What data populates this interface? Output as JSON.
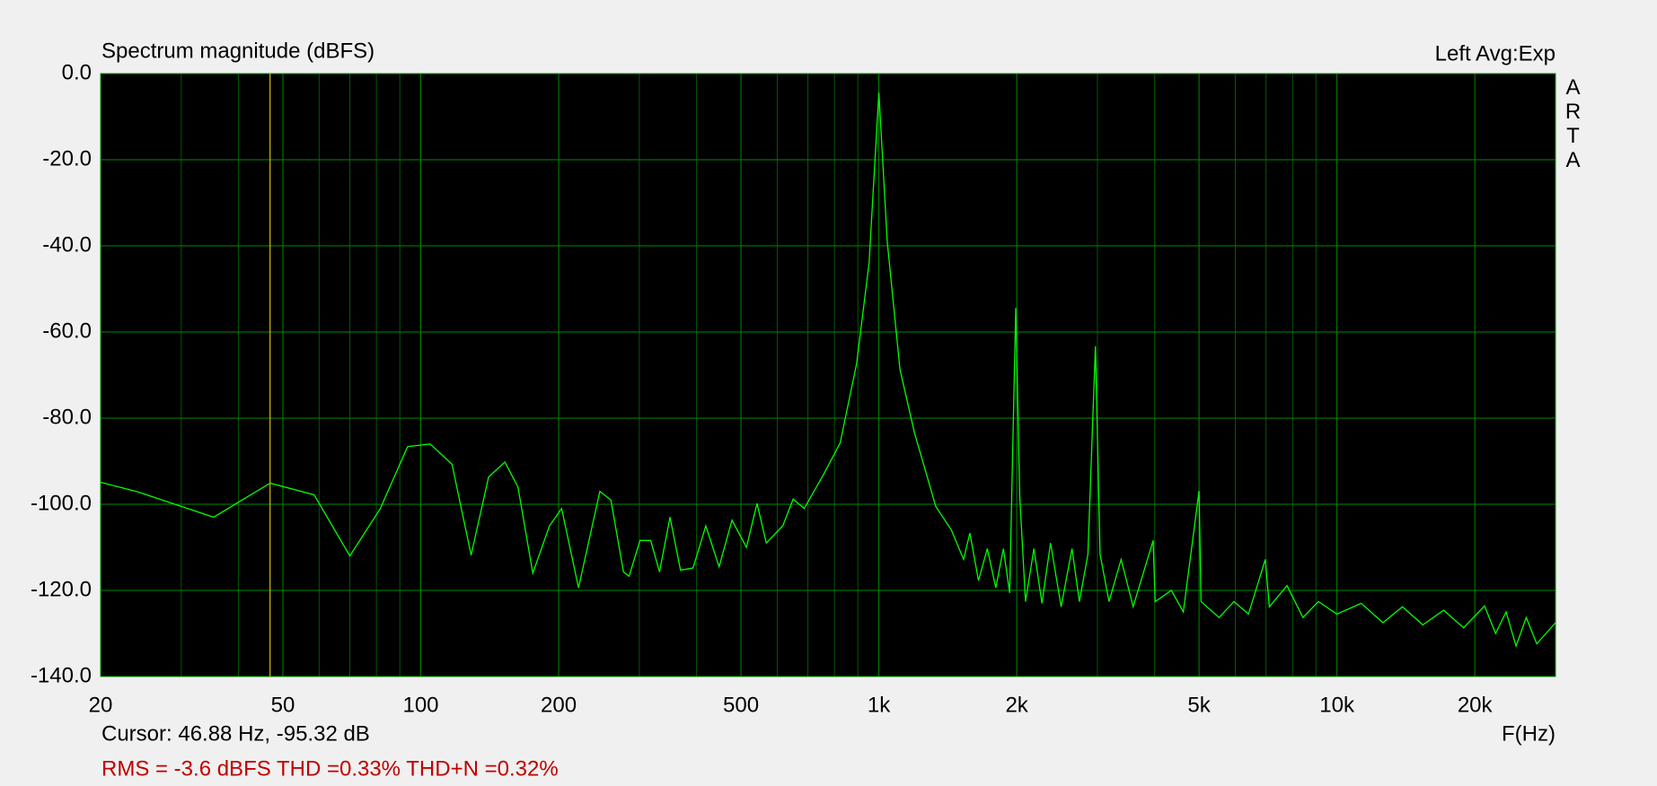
{
  "chart_data": {
    "type": "line",
    "title": "Spectrum magnitude (dBFS)",
    "channel_info": "Left  Avg:Exp",
    "logo": "ARTA",
    "x_axis_label": "F(Hz)",
    "cursor": {
      "label": "Cursor: 46.88 Hz, -95.32 dB",
      "x": 46.88,
      "color": "#d4c000"
    },
    "status": "RMS =   -3.6 dBFS  THD =0.33%  THD+N =0.32%",
    "x_log": true,
    "grid": true,
    "xlim": [
      20,
      30000
    ],
    "ylim": [
      -140,
      0
    ],
    "xticks": [
      20,
      50,
      100,
      200,
      500,
      {
        "value": 1000,
        "label": "1k"
      },
      {
        "value": 2000,
        "label": "2k"
      },
      {
        "value": 5000,
        "label": "5k"
      },
      {
        "value": 10000,
        "label": "10k"
      },
      {
        "value": 20000,
        "label": "20k"
      }
    ],
    "minor_grid": [
      30,
      40,
      60,
      70,
      80,
      90,
      300,
      400,
      600,
      700,
      800,
      900,
      3000,
      4000,
      6000,
      7000,
      8000,
      9000
    ],
    "yticks": [
      {
        "value": 0,
        "label": "0.0"
      },
      {
        "value": -20,
        "label": "-20.0"
      },
      {
        "value": -40,
        "label": "-40.0"
      },
      {
        "value": -60,
        "label": "-60.0"
      },
      {
        "value": -80,
        "label": "-80.0"
      },
      {
        "value": -100,
        "label": "-100.0"
      },
      {
        "value": -120,
        "label": "-120.0"
      },
      {
        "value": -140,
        "label": "-140.0"
      }
    ],
    "x": [
      20,
      24.1,
      35.3,
      46.9,
      58.5,
      70,
      81.6,
      93.6,
      104.8,
      117,
      128.8,
      140.6,
      152.6,
      163,
      175.6,
      191,
      203,
      221,
      246,
      260,
      277,
      285,
      301,
      317.6,
      332,
      350,
      369,
      393,
      419,
      448,
      478,
      514,
      542,
      568,
      617,
      650,
      687,
      758,
      823,
      894,
      952,
      1000,
      1043,
      1112,
      1196,
      1331,
      1440,
      1531,
      1580,
      1650,
      1725,
      1800,
      1870,
      1930,
      1990,
      2030,
      2090,
      2180,
      2270,
      2370,
      2500,
      2640,
      2740,
      2860,
      2970,
      3040,
      3180,
      3380,
      3590,
      3970,
      4010,
      4350,
      4620,
      5000,
      5050,
      5530,
      5960,
      6410,
      6976,
      7120,
      7780,
      8430,
      9110,
      10000,
      11300,
      12600,
      13900,
      15400,
      17100,
      18900,
      21000,
      22200,
      23400,
      24600,
      25900,
      27300,
      30000
    ],
    "series": [
      {
        "name": "Left",
        "color": "#00ff00",
        "values": [
          -94.9,
          -97.1,
          -103,
          -95.1,
          -97.8,
          -112,
          -101,
          -86.6,
          -86,
          -90.7,
          -111.8,
          -93.7,
          -90.2,
          -96,
          -116,
          -105,
          -101,
          -119.4,
          -97,
          -99,
          -115.7,
          -116.7,
          -108.4,
          -108.4,
          -115.7,
          -103,
          -115.3,
          -114.8,
          -105,
          -114.5,
          -103.7,
          -110,
          -99.8,
          -109,
          -105,
          -98.8,
          -101,
          -93,
          -85.8,
          -67.4,
          -44,
          -4.4,
          -39,
          -68.7,
          -83.4,
          -100.5,
          -106,
          -112.8,
          -106.7,
          -117.7,
          -110.3,
          -119.4,
          -110.3,
          -120.6,
          -54.4,
          -98,
          -122.6,
          -110.3,
          -123,
          -109,
          -123.8,
          -110.3,
          -122.6,
          -111.6,
          -63.3,
          -111.6,
          -122.6,
          -112.8,
          -123.8,
          -108.4,
          -122.6,
          -120,
          -125,
          -96.9,
          -122.6,
          -126.3,
          -122.6,
          -125.5,
          -112.8,
          -123.8,
          -118.9,
          -126.3,
          -122.6,
          -125.5,
          -123,
          -127.5,
          -123.8,
          -128,
          -124.6,
          -128.7,
          -123.6,
          -130,
          -125,
          -132.9,
          -126.3,
          -132.4,
          -127.5
        ]
      }
    ]
  }
}
